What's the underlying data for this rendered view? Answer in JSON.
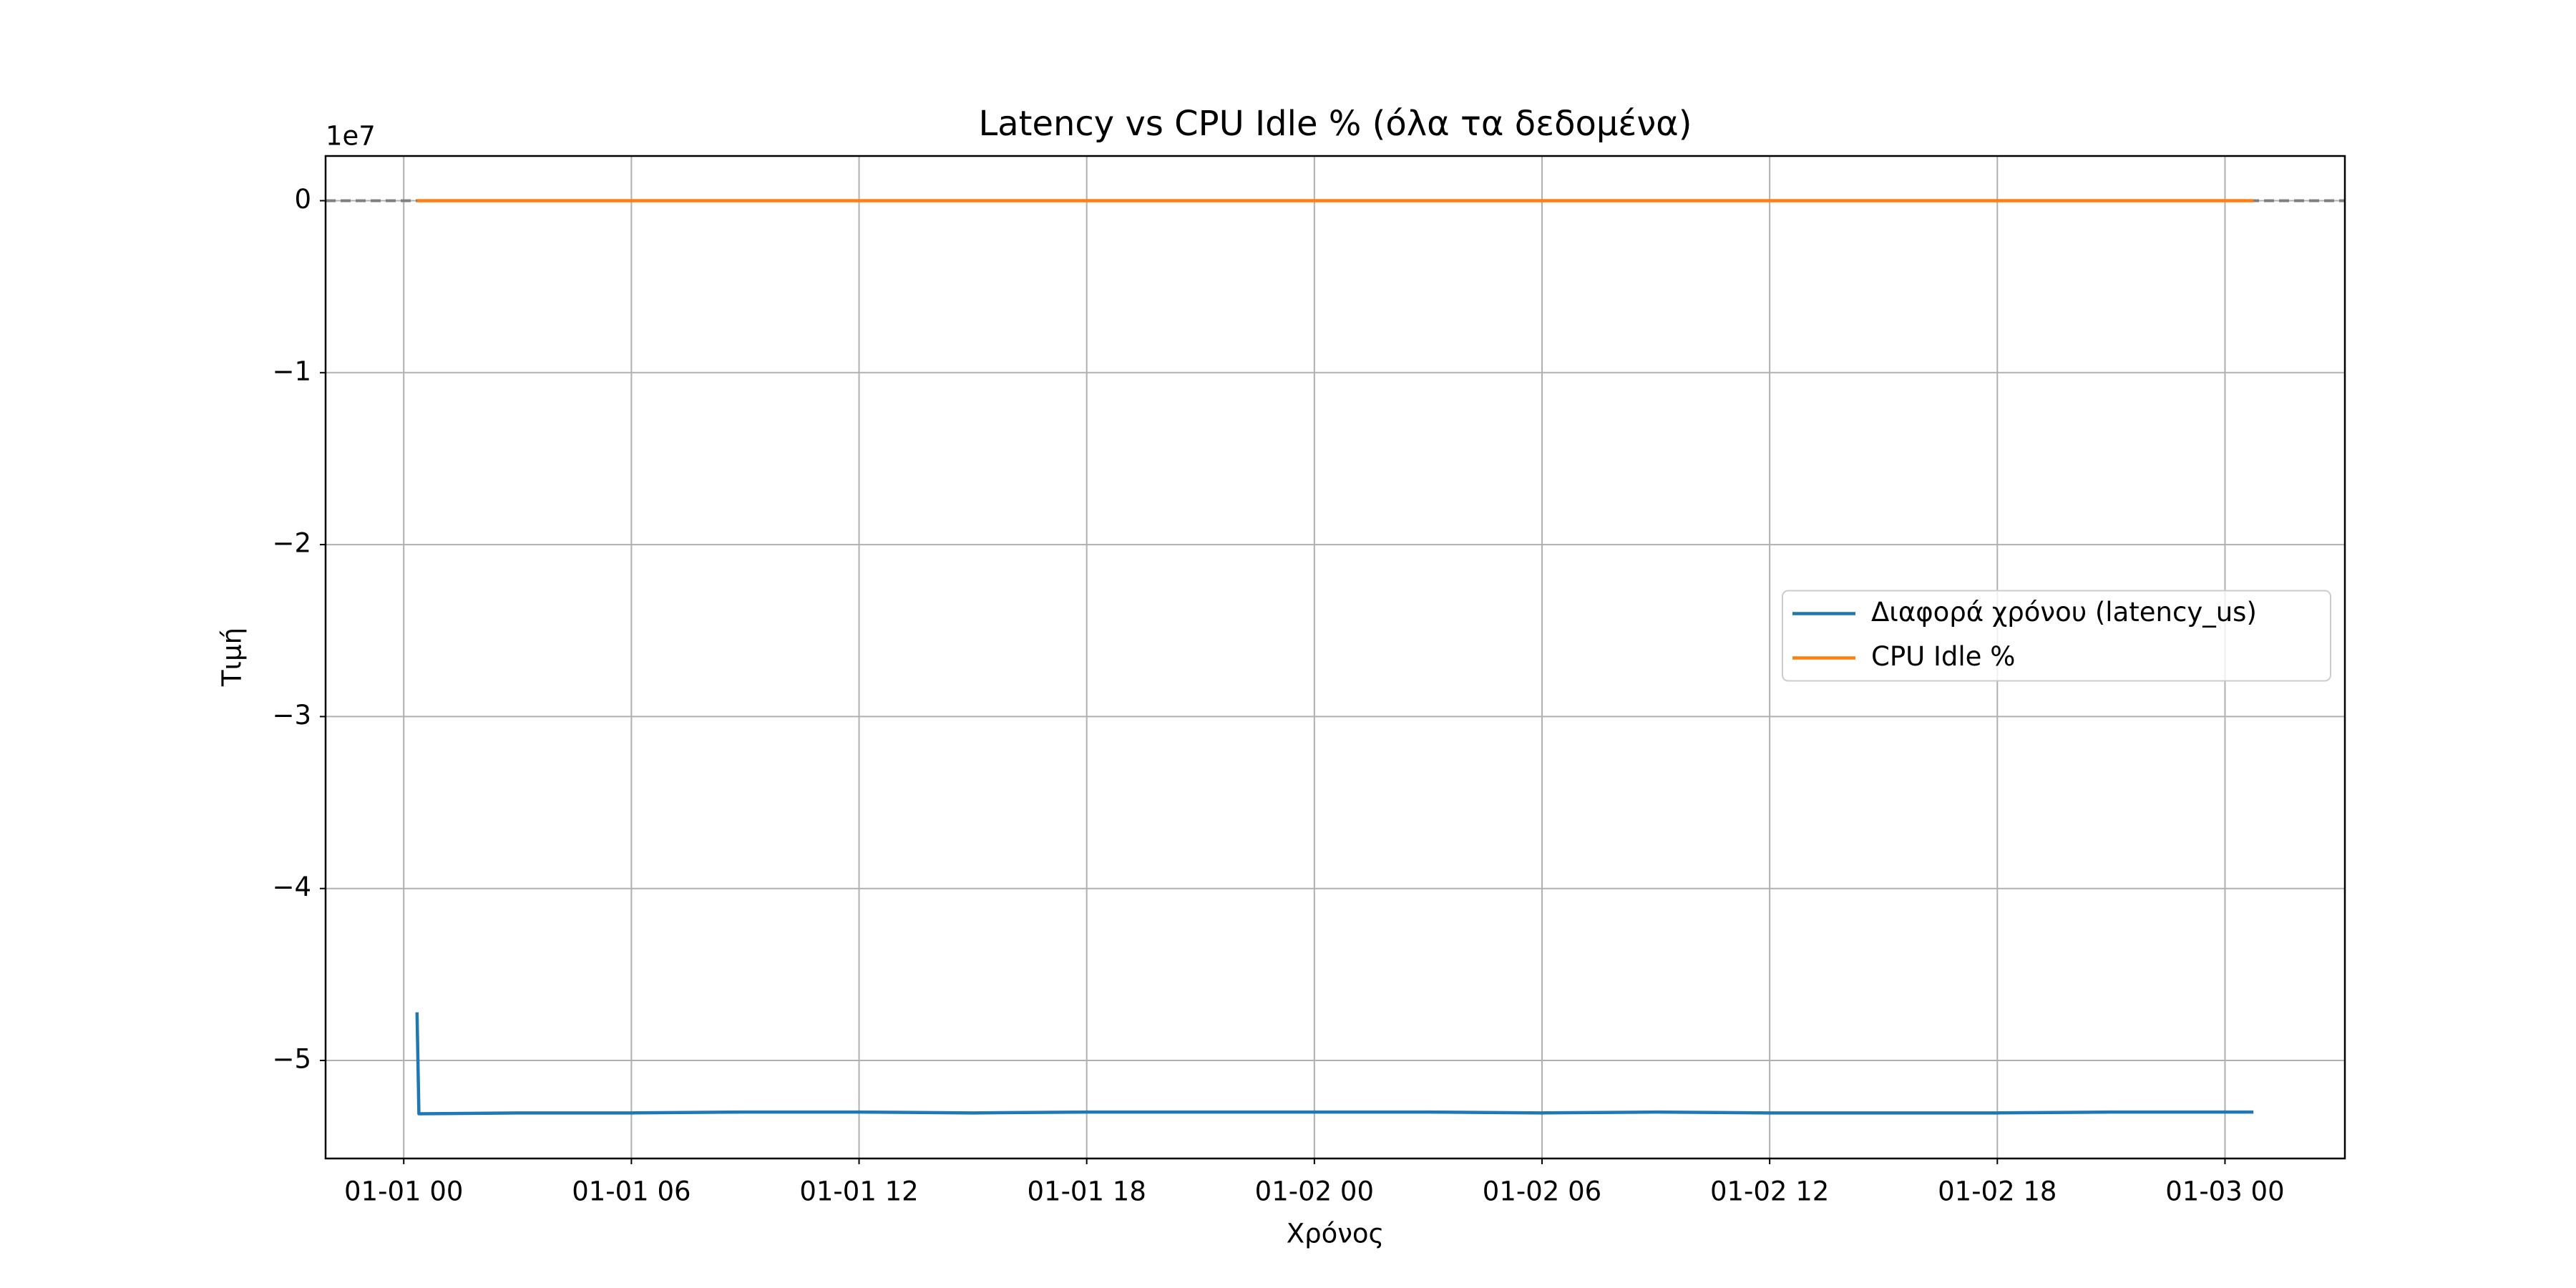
{
  "chart_data": {
    "type": "line",
    "title": "Latency vs CPU Idle % (όλα τα δεδομένα)",
    "xlabel": "Χρόνος",
    "ylabel": "Τιμή",
    "y_offset_label": "1e7",
    "x": [
      0.35,
      0.4,
      3,
      6,
      9,
      12,
      15,
      18,
      21,
      24,
      27,
      30,
      33,
      36,
      39,
      42,
      45,
      48.75
    ],
    "series": [
      {
        "name": "Διαφορά χρόνου (latency_us)",
        "color": "#1f77b4",
        "values": [
          -4.72,
          -5.31,
          -5.305,
          -5.305,
          -5.3,
          -5.3,
          -5.305,
          -5.3,
          -5.3,
          -5.3,
          -5.3,
          -5.305,
          -5.3,
          -5.305,
          -5.305,
          -5.305,
          -5.3,
          -5.3
        ]
      },
      {
        "name": "CPU Idle %",
        "color": "#ff7f0e",
        "values": [
          0,
          0,
          0,
          0,
          0,
          0,
          0,
          0,
          0,
          0,
          0,
          0,
          0,
          0,
          0,
          0,
          0,
          0
        ]
      }
    ],
    "hline": {
      "value": 0,
      "color": "#808080",
      "style": "dashed"
    },
    "xlim": [
      -2.06,
      51.16
    ],
    "ylim": [
      -5.57,
      0.26
    ],
    "xticks": [
      {
        "value": 0,
        "label": "01-01 00"
      },
      {
        "value": 6,
        "label": "01-01 06"
      },
      {
        "value": 12,
        "label": "01-01 12"
      },
      {
        "value": 18,
        "label": "01-01 18"
      },
      {
        "value": 24,
        "label": "01-02 00"
      },
      {
        "value": 30,
        "label": "01-02 06"
      },
      {
        "value": 36,
        "label": "01-02 12"
      },
      {
        "value": 42,
        "label": "01-02 18"
      },
      {
        "value": 48,
        "label": "01-03 00"
      }
    ],
    "yticks": [
      0,
      {
        "value": -1,
        "label": "−1"
      },
      {
        "value": -2,
        "label": "−2"
      },
      {
        "value": -3,
        "label": "−3"
      },
      {
        "value": -4,
        "label": "−4"
      },
      {
        "value": -5,
        "label": "−5"
      }
    ],
    "grid": true,
    "legend": "center right"
  }
}
